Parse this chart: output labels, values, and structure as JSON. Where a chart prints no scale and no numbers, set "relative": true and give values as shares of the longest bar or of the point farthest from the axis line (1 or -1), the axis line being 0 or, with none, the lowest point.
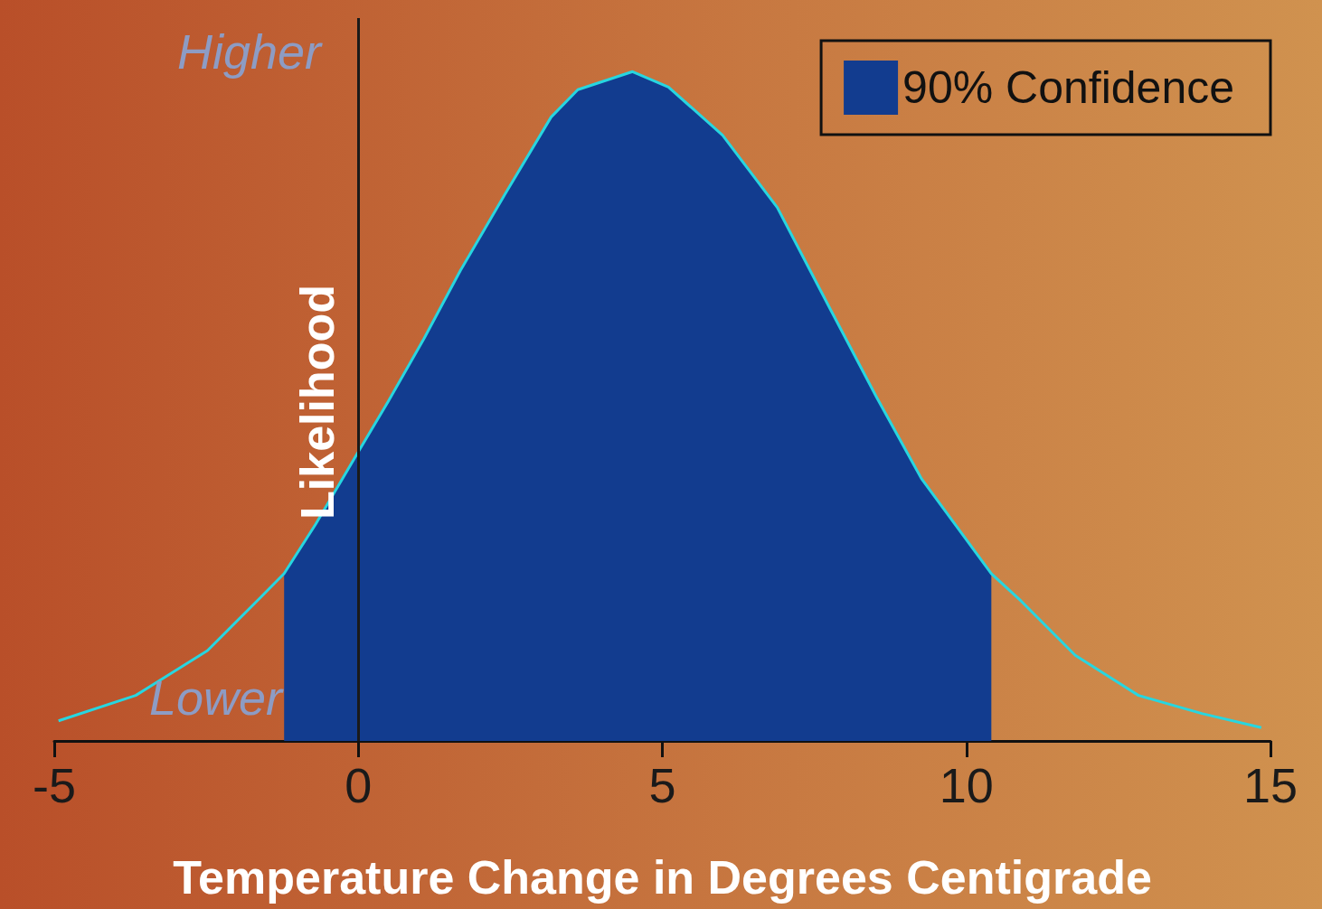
{
  "chart_data": {
    "type": "line",
    "relative": true,
    "xlabel": "Temperature Change in Degrees Centigrade",
    "ylabel": "Likelihood",
    "annotations": [
      "Higher",
      "Lower"
    ],
    "xlim": [
      -5,
      15
    ],
    "xticks": [
      -5,
      0,
      5,
      10,
      15
    ],
    "grid": false,
    "legend": "top right",
    "marker": "none",
    "ref_lines": [
      {
        "axis": "x",
        "value": 0,
        "label": null,
        "color": "#1a1a1a"
      }
    ],
    "series": [
      {
        "name": "90% Confidence",
        "type": "area",
        "color": "#123c8f",
        "x": [
          -1.22,
          -0.7,
          0,
          0.49,
          1.08,
          1.68,
          2.42,
          3.17,
          3.61,
          4.51,
          5.1,
          5.99,
          6.89,
          7.78,
          8.52,
          9.26,
          10.41
        ],
        "values": [
          0.25,
          0.324,
          0.432,
          0.507,
          0.601,
          0.703,
          0.818,
          0.932,
          0.973,
          1,
          0.977,
          0.905,
          0.797,
          0.642,
          0.514,
          0.392,
          0.25
        ]
      },
      {
        "type": "line",
        "color": "#27d6e0",
        "x": [
          -4.93,
          -3.66,
          -2.48,
          -1.59,
          -1.22,
          -0.7,
          0,
          0.49,
          1.08,
          1.68,
          2.42,
          3.17,
          3.61,
          4.51,
          5.1,
          5.99,
          6.89,
          7.78,
          8.52,
          9.26,
          10.41,
          10.9,
          11.79,
          12.83,
          13.87,
          14.85
        ],
        "values": [
          0.03,
          0.068,
          0.135,
          0.216,
          0.25,
          0.324,
          0.432,
          0.507,
          0.601,
          0.703,
          0.818,
          0.932,
          0.973,
          1,
          0.977,
          0.905,
          0.797,
          0.642,
          0.514,
          0.392,
          0.25,
          0.209,
          0.128,
          0.068,
          0.041,
          0.02
        ]
      }
    ]
  }
}
